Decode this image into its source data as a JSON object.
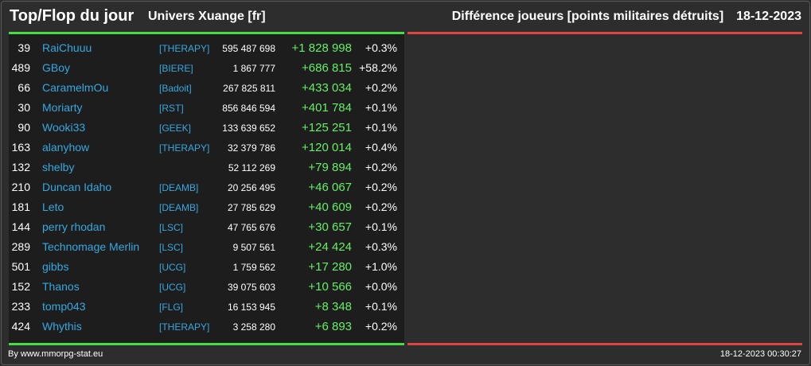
{
  "header": {
    "title": "Top/Flop du jour",
    "universe": "Univers Xuange [fr]",
    "subtitle": "Différence joueurs [points militaires détruits]",
    "date": "18-12-2023"
  },
  "colors": {
    "positive": "#66ee66",
    "link": "#35a8e0",
    "top_line": "#44dd44",
    "flop_line": "#dd4444"
  },
  "top": [
    {
      "rank": "39",
      "name": "RaiChuuu",
      "alliance": "[THERAPY]",
      "points": "595 487 698",
      "diff": "+1 828 998",
      "pct": "+0.3%"
    },
    {
      "rank": "489",
      "name": "GBoy",
      "alliance": "[BIERE]",
      "points": "1 867 777",
      "diff": "+686 815",
      "pct": "+58.2%"
    },
    {
      "rank": "66",
      "name": "CaramelmOu",
      "alliance": "[Badoit]",
      "points": "267 825 811",
      "diff": "+433 034",
      "pct": "+0.2%"
    },
    {
      "rank": "30",
      "name": "Moriarty",
      "alliance": "[RST]",
      "points": "856 846 594",
      "diff": "+401 784",
      "pct": "+0.1%"
    },
    {
      "rank": "90",
      "name": "Wooki33",
      "alliance": "[GEEK]",
      "points": "133 639 652",
      "diff": "+125 251",
      "pct": "+0.1%"
    },
    {
      "rank": "163",
      "name": "alanyhow",
      "alliance": "[THERAPY]",
      "points": "32 379 786",
      "diff": "+120 014",
      "pct": "+0.4%"
    },
    {
      "rank": "132",
      "name": "shelby",
      "alliance": "",
      "points": "52 112 269",
      "diff": "+79 894",
      "pct": "+0.2%"
    },
    {
      "rank": "210",
      "name": "Duncan Idaho",
      "alliance": "[DEAMB]",
      "points": "20 256 495",
      "diff": "+46 067",
      "pct": "+0.2%"
    },
    {
      "rank": "181",
      "name": "Leto",
      "alliance": "[DEAMB]",
      "points": "27 785 629",
      "diff": "+40 609",
      "pct": "+0.2%"
    },
    {
      "rank": "144",
      "name": "perry rhodan",
      "alliance": "[LSC]",
      "points": "47 765 676",
      "diff": "+30 657",
      "pct": "+0.1%"
    },
    {
      "rank": "289",
      "name": "Technomage Merlin",
      "alliance": "[LSC]",
      "points": "9 507 561",
      "diff": "+24 424",
      "pct": "+0.3%"
    },
    {
      "rank": "501",
      "name": "gibbs",
      "alliance": "[UCG]",
      "points": "1 759 562",
      "diff": "+17 280",
      "pct": "+1.0%"
    },
    {
      "rank": "152",
      "name": "Thanos",
      "alliance": "[UCG]",
      "points": "39 075 603",
      "diff": "+10 566",
      "pct": "+0.0%"
    },
    {
      "rank": "233",
      "name": "tomp043",
      "alliance": "[FLG]",
      "points": "16 153 945",
      "diff": "+8 348",
      "pct": "+0.1%"
    },
    {
      "rank": "424",
      "name": "Whythis",
      "alliance": "[THERAPY]",
      "points": "3 258 280",
      "diff": "+6 893",
      "pct": "+0.2%"
    }
  ],
  "footer": {
    "credit": "By www.mmorpg-stat.eu",
    "timestamp": "18-12-2023 00:30:27"
  }
}
